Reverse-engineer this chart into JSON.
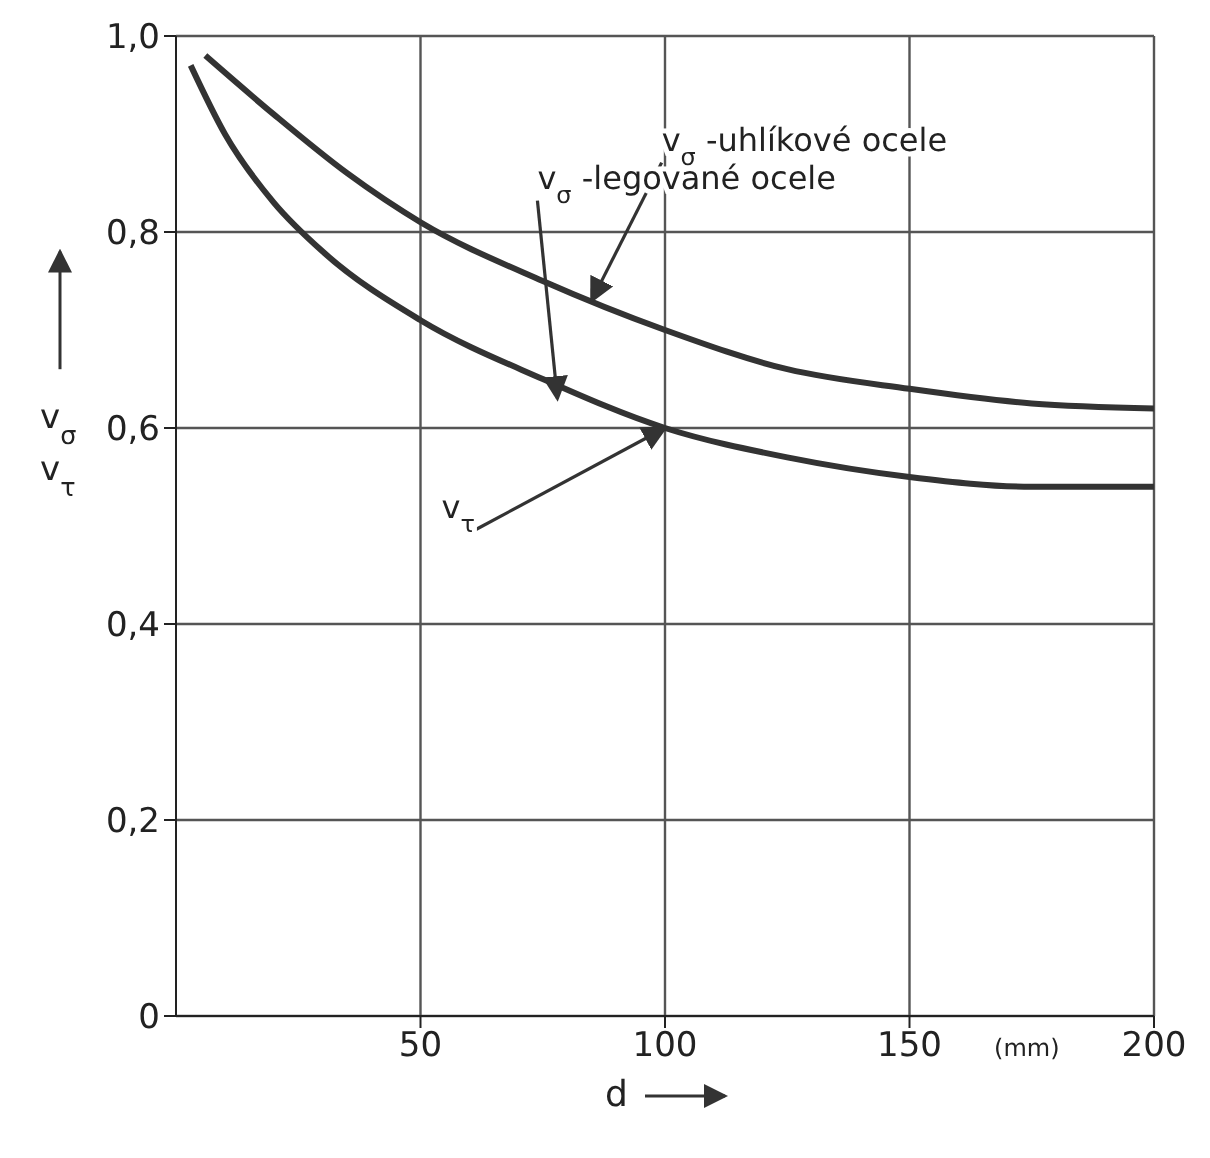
{
  "chart_data": {
    "type": "line",
    "xlabel": "d",
    "ylabel": "v$_{σ}$ v$_{τ}$",
    "xlim": [
      0,
      200
    ],
    "xticks": [
      50,
      100,
      150,
      200
    ],
    "ylim": [
      0,
      1
    ],
    "yticks": [
      {
        "value": 0,
        "label": "0"
      },
      {
        "value": 0.2,
        "label": "0,2"
      },
      {
        "value": 0.4,
        "label": "0,4"
      },
      {
        "value": 0.6,
        "label": "0,6"
      },
      {
        "value": 0.8,
        "label": "0,8"
      },
      {
        "value": 1,
        "label": "1,0"
      }
    ],
    "grid": true,
    "marker": "none",
    "line_style": "solid",
    "series": [
      {
        "color": "#333333",
        "x": [
          6,
          20,
          35,
          50,
          75,
          100,
          125,
          150,
          175,
          200
        ],
        "values": [
          0.98,
          0.92,
          0.86,
          0.81,
          0.75,
          0.7,
          0.66,
          0.64,
          0.625,
          0.62
        ]
      },
      {
        "color": "#333333",
        "x": [
          3,
          10,
          20,
          30,
          50,
          75,
          100,
          125,
          150,
          175,
          200
        ],
        "values": [
          0.97,
          0.9,
          0.83,
          0.78,
          0.71,
          0.65,
          0.6,
          0.57,
          0.55,
          0.54,
          0.54
        ]
      }
    ],
    "annotations": [
      {
        "text": "v$_{σ}$-uhlíkové ocele",
        "x": 85,
        "y": 0.73
      },
      {
        "text": "v$_{σ}$-legované ocele",
        "x": 78,
        "y": 0.63
      },
      {
        "text": "v$_{τ}$",
        "x": 100,
        "y": 0.6
      },
      "(mm)"
    ]
  }
}
